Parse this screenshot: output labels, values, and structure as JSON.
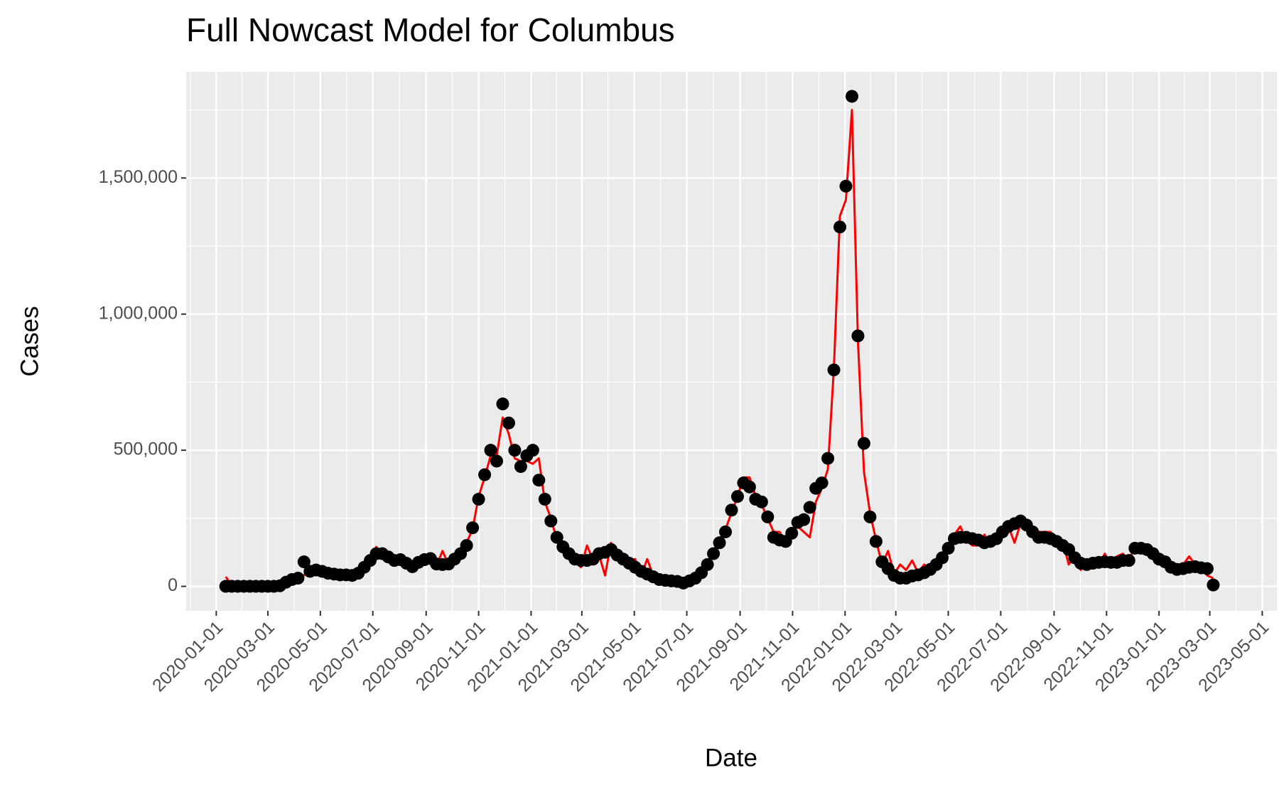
{
  "chart_data": {
    "type": "line",
    "title": "Full Nowcast Model for Columbus",
    "x_label": "Date",
    "y_label": "Cases",
    "x": [
      "2020-01-12",
      "2020-01-19",
      "2020-01-26",
      "2020-02-02",
      "2020-02-09",
      "2020-02-16",
      "2020-02-23",
      "2020-03-01",
      "2020-03-08",
      "2020-03-15",
      "2020-03-22",
      "2020-03-29",
      "2020-04-05",
      "2020-04-12",
      "2020-04-19",
      "2020-04-26",
      "2020-05-03",
      "2020-05-10",
      "2020-05-17",
      "2020-05-24",
      "2020-05-31",
      "2020-06-07",
      "2020-06-14",
      "2020-06-21",
      "2020-06-28",
      "2020-07-05",
      "2020-07-12",
      "2020-07-19",
      "2020-07-26",
      "2020-08-02",
      "2020-08-09",
      "2020-08-16",
      "2020-08-23",
      "2020-08-30",
      "2020-09-06",
      "2020-09-13",
      "2020-09-20",
      "2020-09-27",
      "2020-10-04",
      "2020-10-11",
      "2020-10-18",
      "2020-10-25",
      "2020-11-01",
      "2020-11-08",
      "2020-11-15",
      "2020-11-22",
      "2020-11-29",
      "2020-12-06",
      "2020-12-13",
      "2020-12-20",
      "2020-12-27",
      "2021-01-03",
      "2021-01-10",
      "2021-01-17",
      "2021-01-24",
      "2021-01-31",
      "2021-02-07",
      "2021-02-14",
      "2021-02-21",
      "2021-02-28",
      "2021-03-07",
      "2021-03-14",
      "2021-03-21",
      "2021-03-28",
      "2021-04-04",
      "2021-04-11",
      "2021-04-18",
      "2021-04-25",
      "2021-05-02",
      "2021-05-09",
      "2021-05-16",
      "2021-05-23",
      "2021-05-30",
      "2021-06-06",
      "2021-06-13",
      "2021-06-20",
      "2021-06-27",
      "2021-07-04",
      "2021-07-11",
      "2021-07-18",
      "2021-07-25",
      "2021-08-01",
      "2021-08-08",
      "2021-08-15",
      "2021-08-22",
      "2021-08-29",
      "2021-09-05",
      "2021-09-12",
      "2021-09-19",
      "2021-09-26",
      "2021-10-03",
      "2021-10-10",
      "2021-10-17",
      "2021-10-24",
      "2021-10-31",
      "2021-11-07",
      "2021-11-14",
      "2021-11-21",
      "2021-11-28",
      "2021-12-05",
      "2021-12-12",
      "2021-12-19",
      "2021-12-26",
      "2022-01-02",
      "2022-01-09",
      "2022-01-16",
      "2022-01-23",
      "2022-01-30",
      "2022-02-06",
      "2022-02-13",
      "2022-02-20",
      "2022-02-27",
      "2022-03-06",
      "2022-03-13",
      "2022-03-20",
      "2022-03-27",
      "2022-04-03",
      "2022-04-10",
      "2022-04-17",
      "2022-04-24",
      "2022-05-01",
      "2022-05-08",
      "2022-05-15",
      "2022-05-22",
      "2022-05-29",
      "2022-06-05",
      "2022-06-12",
      "2022-06-19",
      "2022-06-26",
      "2022-07-03",
      "2022-07-10",
      "2022-07-17",
      "2022-07-24",
      "2022-07-31",
      "2022-08-07",
      "2022-08-14",
      "2022-08-21",
      "2022-08-28",
      "2022-09-04",
      "2022-09-11",
      "2022-09-18",
      "2022-09-25",
      "2022-10-02",
      "2022-10-09",
      "2022-10-16",
      "2022-10-23",
      "2022-10-30",
      "2022-11-06",
      "2022-11-13",
      "2022-11-20",
      "2022-11-27",
      "2022-12-04",
      "2022-12-11",
      "2022-12-18",
      "2022-12-25",
      "2023-01-01",
      "2023-01-08",
      "2023-01-15",
      "2023-01-22",
      "2023-01-29",
      "2023-02-05",
      "2023-02-12",
      "2023-02-19",
      "2023-02-26",
      "2023-03-05"
    ],
    "series": [
      {
        "mark": "line",
        "color": "#ff0000",
        "values": [
          35000,
          5000,
          0,
          0,
          0,
          0,
          0,
          0,
          0,
          3000,
          12000,
          22000,
          28000,
          40000,
          75000,
          55000,
          50000,
          45000,
          42000,
          40000,
          60000,
          45000,
          50000,
          65000,
          90000,
          145000,
          115000,
          100000,
          100000,
          92000,
          80000,
          75000,
          90000,
          95000,
          100000,
          75000,
          130000,
          80000,
          105000,
          140000,
          160000,
          210000,
          330000,
          400000,
          480000,
          480000,
          620000,
          560000,
          470000,
          460000,
          460000,
          450000,
          470000,
          310000,
          250000,
          170000,
          160000,
          130000,
          90000,
          70000,
          150000,
          95000,
          115000,
          40000,
          160000,
          120000,
          100000,
          90000,
          100000,
          40000,
          100000,
          40000,
          35000,
          25000,
          20000,
          18000,
          15000,
          15000,
          20000,
          50000,
          90000,
          130000,
          170000,
          210000,
          270000,
          330000,
          400000,
          400000,
          330000,
          300000,
          250000,
          200000,
          200000,
          150000,
          200000,
          220000,
          200000,
          180000,
          310000,
          360000,
          430000,
          800000,
          1360000,
          1420000,
          1750000,
          900000,
          420000,
          270000,
          170000,
          80000,
          130000,
          45000,
          80000,
          60000,
          95000,
          50000,
          80000,
          60000,
          80000,
          110000,
          150000,
          190000,
          220000,
          170000,
          150000,
          150000,
          190000,
          150000,
          170000,
          200000,
          220000,
          160000,
          230000,
          230000,
          210000,
          200000,
          200000,
          200000,
          150000,
          165000,
          80000,
          110000,
          60000,
          90000,
          80000,
          80000,
          120000,
          75000,
          110000,
          120000,
          90000,
          150000,
          150000,
          150000,
          100000,
          80000,
          100000,
          90000,
          75000,
          80000,
          110000,
          80000,
          70000,
          40000,
          30000
        ]
      },
      {
        "mark": "point",
        "color": "#000000",
        "values": [
          0,
          0,
          0,
          0,
          0,
          0,
          0,
          0,
          0,
          2000,
          15000,
          25000,
          30000,
          90000,
          55000,
          60000,
          55000,
          48000,
          45000,
          42000,
          42000,
          40000,
          48000,
          70000,
          95000,
          120000,
          120000,
          108000,
          95000,
          98000,
          85000,
          72000,
          88000,
          98000,
          102000,
          82000,
          80000,
          82000,
          100000,
          120000,
          150000,
          215000,
          320000,
          410000,
          500000,
          460000,
          670000,
          600000,
          500000,
          440000,
          480000,
          500000,
          390000,
          320000,
          240000,
          180000,
          145000,
          120000,
          100000,
          95000,
          95000,
          100000,
          120000,
          125000,
          135000,
          115000,
          100000,
          85000,
          70000,
          55000,
          45000,
          35000,
          25000,
          22000,
          20000,
          18000,
          12000,
          20000,
          30000,
          50000,
          80000,
          120000,
          160000,
          200000,
          280000,
          330000,
          380000,
          365000,
          320000,
          310000,
          255000,
          180000,
          170000,
          165000,
          195000,
          235000,
          245000,
          290000,
          360000,
          380000,
          470000,
          795000,
          1320000,
          1470000,
          1800000,
          920000,
          525000,
          255000,
          165000,
          90000,
          65000,
          40000,
          30000,
          30000,
          38000,
          42000,
          50000,
          62000,
          80000,
          105000,
          140000,
          175000,
          180000,
          180000,
          175000,
          170000,
          160000,
          165000,
          175000,
          200000,
          220000,
          230000,
          240000,
          225000,
          200000,
          180000,
          180000,
          175000,
          165000,
          150000,
          135000,
          105000,
          85000,
          80000,
          85000,
          88000,
          90000,
          88000,
          88000,
          95000,
          95000,
          140000,
          140000,
          135000,
          120000,
          100000,
          90000,
          70000,
          62000,
          65000,
          70000,
          72000,
          68000,
          65000,
          5000
        ]
      }
    ],
    "xlim": [
      "2019-11-27",
      "2023-05-18"
    ],
    "xticks": [
      "2020-01-01",
      "2020-03-01",
      "2020-05-01",
      "2020-07-01",
      "2020-09-01",
      "2020-11-01",
      "2021-01-01",
      "2021-03-01",
      "2021-05-01",
      "2021-07-01",
      "2021-09-01",
      "2021-11-01",
      "2022-01-01",
      "2022-03-01",
      "2022-05-01",
      "2022-07-01",
      "2022-09-01",
      "2022-11-01",
      "2023-01-01",
      "2023-03-01",
      "2023-05-01"
    ],
    "ylim": [
      -90000,
      1890000
    ],
    "yticks": [
      0,
      {
        "value": 500000,
        "label": "500,000"
      },
      {
        "value": 1000000,
        "label": "1,000,000"
      },
      {
        "value": 1500000,
        "label": "1,500,000"
      }
    ],
    "grid": true,
    "minor_grid": true,
    "panel_color": "#ebebeb"
  }
}
